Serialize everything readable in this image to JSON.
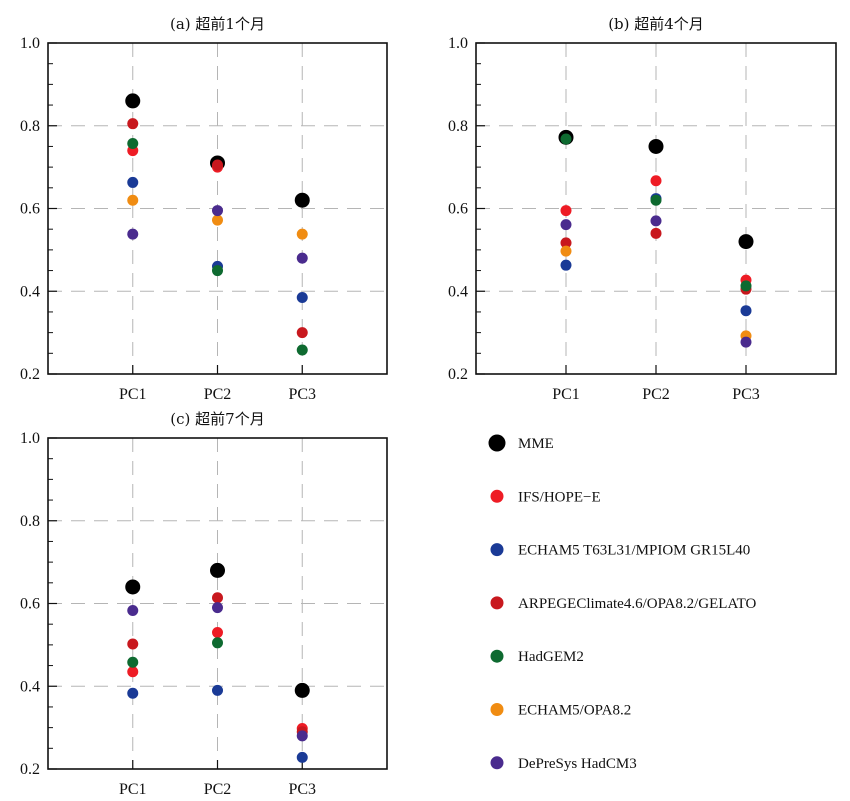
{
  "chart_data": [
    {
      "type": "scatter",
      "title": "(a) 超前1个月",
      "categories": [
        "PC1",
        "PC2",
        "PC3"
      ],
      "ylim": [
        0.2,
        1.0
      ],
      "yticks": [
        "0.2",
        "0.4",
        "0.6",
        "0.8",
        "1.0"
      ],
      "grid": true,
      "series": [
        {
          "name": "MME",
          "values": [
            0.86,
            0.71,
            0.62
          ]
        },
        {
          "name": "IFS/HOPE−E",
          "values": [
            0.74,
            0.7,
            null
          ]
        },
        {
          "name": "ECHAM5 T63L31/MPIOM GR15L40",
          "values": [
            0.663,
            0.46,
            0.385
          ]
        },
        {
          "name": "ARPEGEClimate4.6/OPA8.2/GELATO",
          "values": [
            0.805,
            0.705,
            0.3
          ]
        },
        {
          "name": "HadGEM2",
          "values": [
            0.757,
            0.45,
            0.258
          ]
        },
        {
          "name": "ECHAM5/OPA8.2",
          "values": [
            0.62,
            0.572,
            0.538
          ]
        },
        {
          "name": "DePreSys HadCM3",
          "values": [
            0.538,
            0.595,
            0.48
          ]
        }
      ]
    },
    {
      "type": "scatter",
      "title": "(b) 超前4个月",
      "categories": [
        "PC1",
        "PC2",
        "PC3"
      ],
      "ylim": [
        0.2,
        1.0
      ],
      "yticks": [
        "0.2",
        "0.4",
        "0.6",
        "0.8",
        "1.0"
      ],
      "grid": true,
      "series": [
        {
          "name": "MME",
          "values": [
            0.772,
            0.75,
            0.52
          ]
        },
        {
          "name": "IFS/HOPE−E",
          "values": [
            0.595,
            0.667,
            0.427
          ]
        },
        {
          "name": "ECHAM5 T63L31/MPIOM GR15L40",
          "values": [
            0.463,
            0.624,
            0.353
          ]
        },
        {
          "name": "ARPEGEClimate4.6/OPA8.2/GELATO",
          "values": [
            0.517,
            0.54,
            0.405
          ]
        },
        {
          "name": "HadGEM2",
          "values": [
            0.768,
            0.62,
            0.413
          ]
        },
        {
          "name": "ECHAM5/OPA8.2",
          "values": [
            0.497,
            null,
            0.292
          ]
        },
        {
          "name": "DePreSys HadCM3",
          "values": [
            0.561,
            0.57,
            0.277
          ]
        }
      ]
    },
    {
      "type": "scatter",
      "title": "(c) 超前7个月",
      "categories": [
        "PC1",
        "PC2",
        "PC3"
      ],
      "ylim": [
        0.2,
        1.0
      ],
      "yticks": [
        "0.2",
        "0.4",
        "0.6",
        "0.8",
        "1.0"
      ],
      "grid": true,
      "series": [
        {
          "name": "MME",
          "values": [
            0.64,
            0.68,
            0.39
          ]
        },
        {
          "name": "IFS/HOPE−E",
          "values": [
            0.435,
            0.53,
            0.298
          ]
        },
        {
          "name": "ECHAM5 T63L31/MPIOM GR15L40",
          "values": [
            0.383,
            0.39,
            0.228
          ]
        },
        {
          "name": "ARPEGEClimate4.6/OPA8.2/GELATO",
          "values": [
            0.502,
            0.614,
            0.29
          ]
        },
        {
          "name": "HadGEM2",
          "values": [
            0.458,
            0.505,
            null
          ]
        },
        {
          "name": "ECHAM5/OPA8.2",
          "values": [
            null,
            null,
            null
          ]
        },
        {
          "name": "DePreSys HadCM3",
          "values": [
            0.583,
            0.59,
            0.28
          ]
        }
      ]
    }
  ],
  "legend": {
    "placement": "bottom-right",
    "items": [
      {
        "name": "MME",
        "color": "#000000",
        "size": "large"
      },
      {
        "name": "IFS/HOPE−E",
        "color": "#ee1c25"
      },
      {
        "name": "ECHAM5 T63L31/MPIOM GR15L40",
        "color": "#1a3a96"
      },
      {
        "name": "ARPEGEClimate4.6/OPA8.2/GELATO",
        "color": "#c8181e"
      },
      {
        "name": "HadGEM2",
        "color": "#0e6a30"
      },
      {
        "name": "ECHAM5/OPA8.2",
        "color": "#f08c12"
      },
      {
        "name": "DePreSys HadCM3",
        "color": "#4a2b8e"
      }
    ]
  }
}
